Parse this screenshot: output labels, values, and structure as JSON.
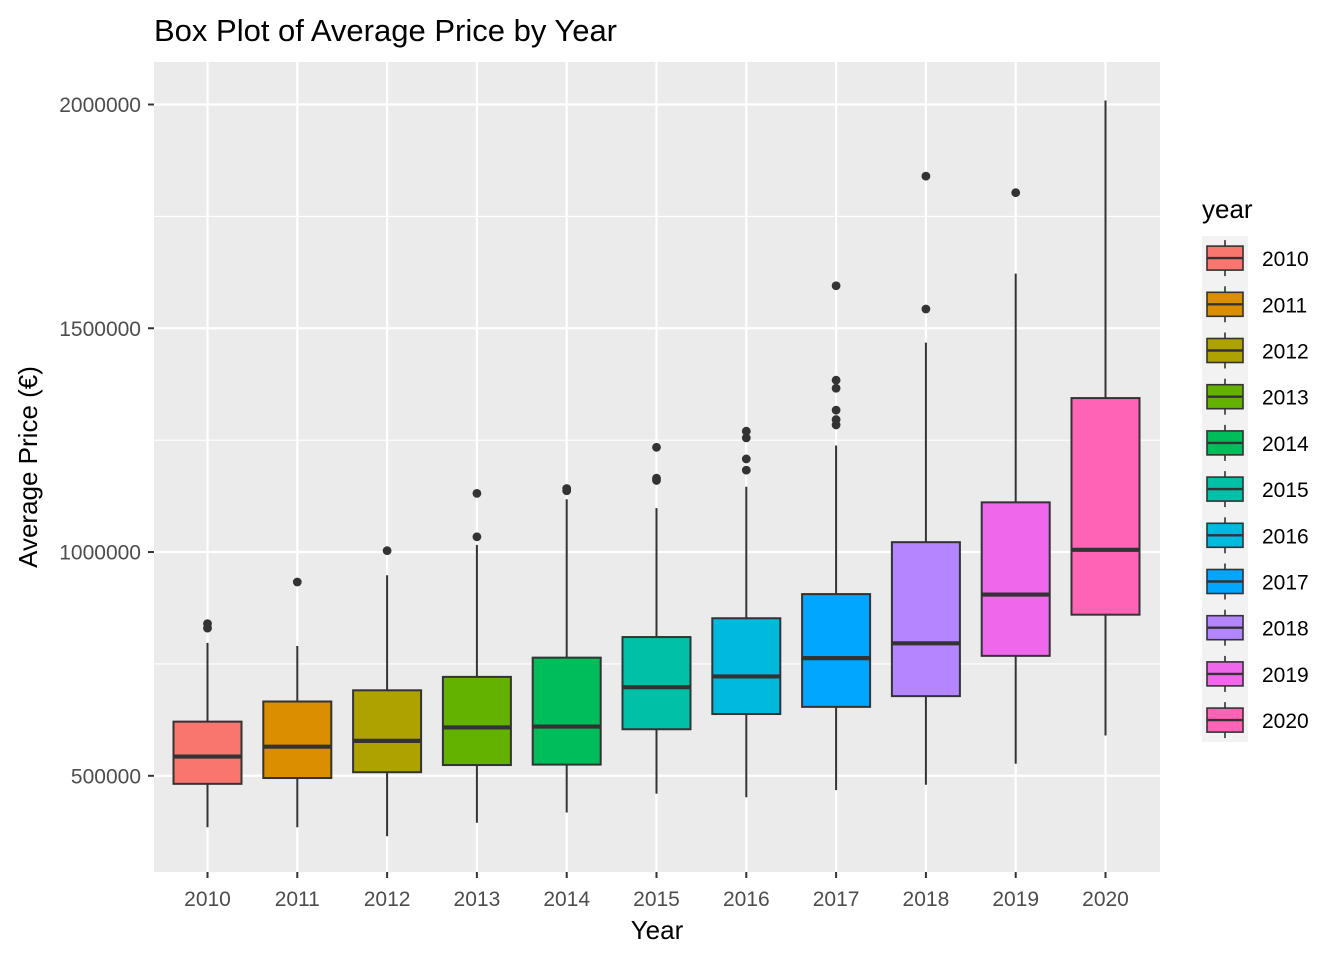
{
  "chart_data": {
    "type": "box",
    "title": "Box Plot of Average Price by Year",
    "xlabel": "Year",
    "ylabel": "Average Price (€)",
    "ylim": [
      285000,
      2095000
    ],
    "yticks": [
      500000,
      1000000,
      1500000,
      2000000
    ],
    "ytick_labels": [
      "500000",
      "1000000",
      "1500000",
      "2000000"
    ],
    "grid": true,
    "legend": {
      "title": "year",
      "position": "right"
    },
    "categories": [
      "2010",
      "2011",
      "2012",
      "2013",
      "2014",
      "2015",
      "2016",
      "2017",
      "2018",
      "2019",
      "2020"
    ],
    "series": [
      {
        "name": "2010",
        "color": "#F8766D",
        "min": 385000,
        "q1": 482000,
        "median": 543000,
        "q3": 621000,
        "max": 797000,
        "outliers": [
          830000,
          840000
        ]
      },
      {
        "name": "2011",
        "color": "#DB8E00",
        "min": 385000,
        "q1": 495000,
        "median": 565000,
        "q3": 666000,
        "max": 790000,
        "outliers": [
          933000
        ]
      },
      {
        "name": "2012",
        "color": "#AEA200",
        "min": 365000,
        "q1": 508000,
        "median": 578000,
        "q3": 691000,
        "max": 948000,
        "outliers": [
          1003000
        ]
      },
      {
        "name": "2013",
        "color": "#64B200",
        "min": 395000,
        "q1": 524000,
        "median": 608000,
        "q3": 721000,
        "max": 1016000,
        "outliers": [
          1034000,
          1131000
        ]
      },
      {
        "name": "2014",
        "color": "#00BD5C",
        "min": 418000,
        "q1": 525000,
        "median": 610000,
        "q3": 764000,
        "max": 1118000,
        "outliers": [
          1137000,
          1142000
        ]
      },
      {
        "name": "2015",
        "color": "#00C1A7",
        "min": 460000,
        "q1": 604000,
        "median": 698000,
        "q3": 810000,
        "max": 1098000,
        "outliers": [
          1160000,
          1165000,
          1234000
        ]
      },
      {
        "name": "2016",
        "color": "#00BADE",
        "min": 452000,
        "q1": 638000,
        "median": 722000,
        "q3": 852000,
        "max": 1146000,
        "outliers": [
          1183000,
          1208000,
          1255000,
          1270000
        ]
      },
      {
        "name": "2017",
        "color": "#00A6FF",
        "min": 468000,
        "q1": 654000,
        "median": 763000,
        "q3": 906000,
        "max": 1238000,
        "outliers": [
          1284000,
          1296000,
          1317000,
          1366000,
          1384000,
          1595000
        ]
      },
      {
        "name": "2018",
        "color": "#B385FF",
        "min": 480000,
        "q1": 678000,
        "median": 796000,
        "q3": 1022000,
        "max": 1468000,
        "outliers": [
          1543000,
          1840000
        ]
      },
      {
        "name": "2019",
        "color": "#EF67EB",
        "min": 527000,
        "q1": 768000,
        "median": 905000,
        "q3": 1111000,
        "max": 1622000,
        "outliers": [
          1803000
        ]
      },
      {
        "name": "2020",
        "color": "#FF63B6",
        "min": 590000,
        "q1": 860000,
        "median": 1005000,
        "q3": 1344000,
        "max": 2009000,
        "outliers": []
      }
    ]
  }
}
